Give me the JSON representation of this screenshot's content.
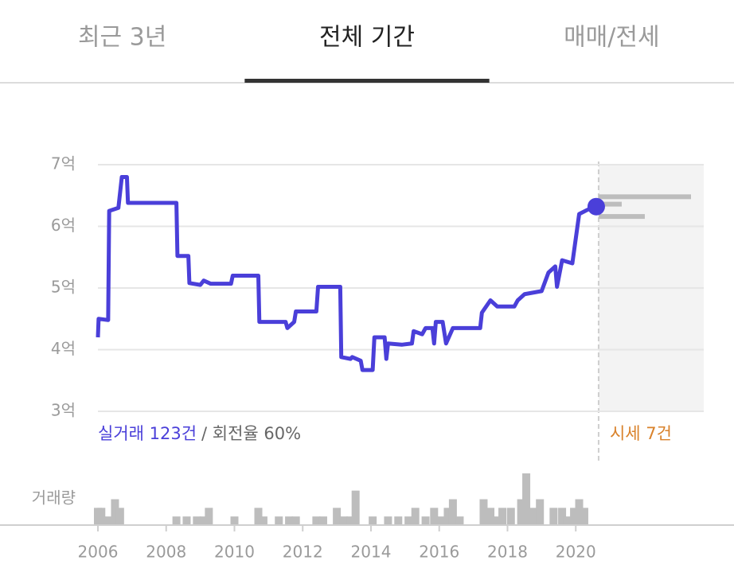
{
  "tabs": [
    {
      "label": "최근 3년"
    },
    {
      "label": "전체 기간"
    },
    {
      "label": "매매/전세"
    }
  ],
  "active_tab": 1,
  "chart_data": [
    {
      "type": "line",
      "xlim": [
        2006,
        2023.75
      ],
      "ylim": [
        3,
        7
      ],
      "yticks": [
        {
          "value": 3,
          "label": "3억"
        },
        {
          "value": 4,
          "label": "4억"
        },
        {
          "value": 5,
          "label": "5억"
        },
        {
          "value": 6,
          "label": "6억"
        },
        {
          "value": 7,
          "label": "7억"
        }
      ],
      "grid": true,
      "x": [
        2006.0,
        2006.02,
        2006.3,
        2006.33,
        2006.6,
        2006.7,
        2006.85,
        2006.88,
        2008.3,
        2008.33,
        2008.65,
        2008.68,
        2009.0,
        2009.1,
        2009.3,
        2009.9,
        2009.95,
        2010.7,
        2010.73,
        2011.5,
        2011.55,
        2011.75,
        2011.8,
        2012.4,
        2012.45,
        2013.1,
        2013.13,
        2013.4,
        2013.45,
        2013.7,
        2013.75,
        2014.05,
        2014.1,
        2014.4,
        2014.45,
        2014.5,
        2014.9,
        2015.2,
        2015.25,
        2015.5,
        2015.6,
        2015.8,
        2015.85,
        2015.9,
        2016.1,
        2016.2,
        2016.4,
        2017.2,
        2017.25,
        2017.5,
        2017.7,
        2018.2,
        2018.3,
        2018.5,
        2019.0,
        2019.2,
        2019.4,
        2019.45,
        2019.6,
        2019.9,
        2020.1,
        2020.35,
        2020.6
      ],
      "series": [
        {
          "name": "실거래",
          "color": "#4a3fd9",
          "values": [
            4.2,
            4.5,
            4.48,
            6.25,
            6.3,
            6.8,
            6.8,
            6.38,
            6.38,
            5.52,
            5.52,
            5.08,
            5.05,
            5.12,
            5.07,
            5.07,
            5.2,
            5.2,
            4.45,
            4.45,
            4.35,
            4.45,
            4.62,
            4.62,
            5.02,
            5.02,
            3.88,
            3.85,
            3.88,
            3.82,
            3.67,
            3.67,
            4.2,
            4.2,
            3.85,
            4.1,
            4.08,
            4.1,
            4.3,
            4.25,
            4.35,
            4.35,
            4.1,
            4.45,
            4.45,
            4.1,
            4.35,
            4.35,
            4.6,
            4.8,
            4.7,
            4.7,
            4.8,
            4.9,
            4.95,
            5.25,
            5.35,
            5.02,
            5.45,
            5.4,
            6.2,
            6.27,
            6.32
          ]
        }
      ],
      "market_prices": {
        "color": "#bdbdbd",
        "values": [
          6.48,
          6.36,
          6.16
        ],
        "counts": [
          4,
          1,
          2
        ]
      },
      "annotations": {
        "trades": "실거래 123건",
        "turnover": "/ 회전율 60%",
        "market": "시세 7건"
      }
    },
    {
      "type": "bar",
      "ylabel": "거래량",
      "xlim": [
        2006,
        2023.75
      ],
      "ylim": [
        0,
        6
      ],
      "color": "#bdbdbd",
      "xticks": [
        2006,
        2008,
        2010,
        2012,
        2014,
        2016,
        2018,
        2020
      ],
      "x": [
        2006.0,
        2006.1,
        2006.3,
        2006.5,
        2006.65,
        2008.3,
        2008.6,
        2008.9,
        2009.1,
        2009.25,
        2010.0,
        2010.7,
        2010.85,
        2011.3,
        2011.6,
        2011.8,
        2012.4,
        2012.6,
        2013.0,
        2013.2,
        2013.4,
        2013.55,
        2014.05,
        2014.5,
        2014.8,
        2015.1,
        2015.3,
        2015.6,
        2015.85,
        2016.05,
        2016.25,
        2016.4,
        2016.6,
        2017.3,
        2017.5,
        2017.7,
        2017.85,
        2018.1,
        2018.4,
        2018.55,
        2018.75,
        2018.95,
        2019.35,
        2019.6,
        2019.75,
        2019.95,
        2020.1,
        2020.25
      ],
      "values": [
        2,
        2,
        1,
        3,
        2,
        1,
        1,
        1,
        1,
        2,
        1,
        2,
        1,
        1,
        1,
        1,
        1,
        1,
        2,
        1,
        1,
        4,
        1,
        1,
        1,
        1,
        2,
        1,
        2,
        1,
        2,
        3,
        1,
        3,
        2,
        1,
        2,
        2,
        3,
        6,
        2,
        3,
        2,
        2,
        1,
        2,
        3,
        2
      ]
    }
  ]
}
